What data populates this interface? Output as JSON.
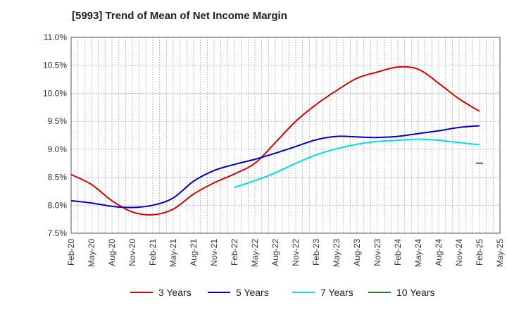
{
  "chart_data": {
    "type": "line",
    "title": "[5993]  Trend of Mean of Net Income Margin",
    "xlabel": "",
    "ylabel": "",
    "ylim": [
      7.5,
      11.0
    ],
    "y_ticks": [
      7.5,
      8.0,
      8.5,
      9.0,
      9.5,
      10.0,
      10.5,
      11.0
    ],
    "y_tick_labels": [
      "7.5%",
      "8.0%",
      "8.5%",
      "9.0%",
      "9.5%",
      "10.0%",
      "10.5%",
      "11.0%"
    ],
    "x_tick_labels": [
      "Feb-20",
      "May-20",
      "Aug-20",
      "Nov-20",
      "Feb-21",
      "May-21",
      "Aug-21",
      "Nov-21",
      "Feb-22",
      "May-22",
      "Aug-22",
      "Nov-22",
      "Feb-23",
      "May-23",
      "Aug-23",
      "Nov-23",
      "Feb-24",
      "May-24",
      "Aug-24",
      "Nov-24",
      "Feb-25",
      "May-25"
    ],
    "grid": true,
    "legend_position": "bottom",
    "series": [
      {
        "name": "3 Years",
        "color": "#dd0000",
        "points": [
          [
            "Feb-20",
            8.55
          ],
          [
            "May-20",
            8.37
          ],
          [
            "Aug-20",
            8.08
          ],
          [
            "Nov-20",
            7.88
          ],
          [
            "Feb-21",
            7.83
          ],
          [
            "May-21",
            7.93
          ],
          [
            "Aug-21",
            8.2
          ],
          [
            "Nov-21",
            8.4
          ],
          [
            "Feb-22",
            8.56
          ],
          [
            "May-22",
            8.75
          ],
          [
            "Aug-22",
            9.12
          ],
          [
            "Nov-22",
            9.5
          ],
          [
            "Feb-23",
            9.8
          ],
          [
            "May-23",
            10.05
          ],
          [
            "Aug-23",
            10.27
          ],
          [
            "Nov-23",
            10.38
          ],
          [
            "Feb-24",
            10.47
          ],
          [
            "May-24",
            10.43
          ],
          [
            "Aug-24",
            10.18
          ],
          [
            "Nov-24",
            9.9
          ],
          [
            "Feb-25",
            9.68
          ]
        ]
      },
      {
        "name": "5 Years",
        "color": "#0000cc",
        "points": [
          [
            "Feb-20",
            8.08
          ],
          [
            "May-20",
            8.04
          ],
          [
            "Aug-20",
            7.98
          ],
          [
            "Nov-20",
            7.96
          ],
          [
            "Feb-21",
            8.0
          ],
          [
            "May-21",
            8.13
          ],
          [
            "Aug-21",
            8.43
          ],
          [
            "Nov-21",
            8.62
          ],
          [
            "Feb-22",
            8.73
          ],
          [
            "May-22",
            8.82
          ],
          [
            "Aug-22",
            8.93
          ],
          [
            "Nov-22",
            9.05
          ],
          [
            "Feb-23",
            9.17
          ],
          [
            "May-23",
            9.23
          ],
          [
            "Aug-23",
            9.22
          ],
          [
            "Nov-23",
            9.21
          ],
          [
            "Feb-24",
            9.23
          ],
          [
            "May-24",
            9.28
          ],
          [
            "Aug-24",
            9.33
          ],
          [
            "Nov-24",
            9.39
          ],
          [
            "Feb-25",
            9.42
          ]
        ]
      },
      {
        "name": "7 Years",
        "color": "#00e0e0",
        "points": [
          [
            "Feb-22",
            8.32
          ],
          [
            "May-22",
            8.44
          ],
          [
            "Aug-22",
            8.58
          ],
          [
            "Nov-22",
            8.75
          ],
          [
            "Feb-23",
            8.9
          ],
          [
            "May-23",
            9.01
          ],
          [
            "Aug-23",
            9.09
          ],
          [
            "Nov-23",
            9.14
          ],
          [
            "Feb-24",
            9.16
          ],
          [
            "May-24",
            9.18
          ],
          [
            "Aug-24",
            9.16
          ],
          [
            "Nov-24",
            9.12
          ],
          [
            "Feb-25",
            9.08
          ]
        ]
      },
      {
        "name": "10 Years",
        "color": "#228822",
        "points": [
          [
            "Feb-25",
            8.75
          ]
        ]
      }
    ]
  }
}
